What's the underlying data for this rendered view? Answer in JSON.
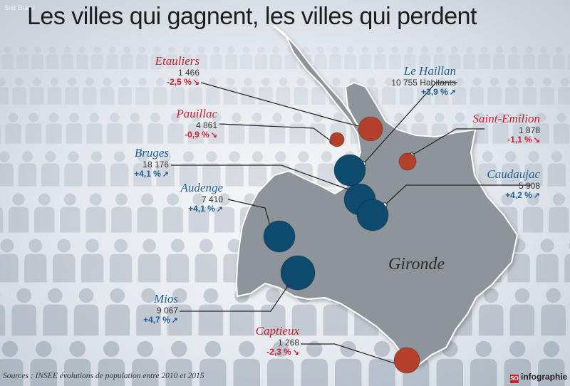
{
  "title": "Les villes qui gagnent, les villes qui perdent",
  "watermark": "Sud Ouest",
  "region_label": "Gironde",
  "source": "Sources : INSEE évolutions de population entre 2010 et 2015",
  "brand": "infographie",
  "brand_mark": "SO",
  "colors": {
    "gain": "#0e4a6e",
    "loss": "#b3402b",
    "map_fill": "#8e959a",
    "map_stroke": "#ffffff"
  },
  "cities": [
    {
      "id": "etauliers",
      "name": "Etauliers",
      "population": "1 466",
      "change": "-2,5 %",
      "trend": "loss",
      "arrow": "↘"
    },
    {
      "id": "pauillac",
      "name": "Pauillac",
      "population": "4 861",
      "change": "-0,9 %",
      "trend": "loss",
      "arrow": "↘"
    },
    {
      "id": "bruges",
      "name": "Bruges",
      "population": "18 176",
      "change": "+4,1 %",
      "trend": "gain",
      "arrow": "↗"
    },
    {
      "id": "audenge",
      "name": "Audenge",
      "population": "7 410",
      "change": "+4,1 %",
      "trend": "gain",
      "arrow": "↗"
    },
    {
      "id": "mios",
      "name": "Mios",
      "population": "9 067",
      "change": "+4,7 %",
      "trend": "gain",
      "arrow": "↗"
    },
    {
      "id": "captieux",
      "name": "Captieux",
      "population": "1 268",
      "change": "-2,3 %",
      "trend": "loss",
      "arrow": "↘"
    },
    {
      "id": "le-haillan",
      "name": "Le Haillan",
      "population": "10 755 Habitants",
      "change": "+3,9 %",
      "trend": "gain",
      "arrow": "↗"
    },
    {
      "id": "saint-emilion",
      "name": "Saint-Emilion",
      "population": "1 878",
      "change": "-1,1 %",
      "trend": "loss",
      "arrow": "↘"
    },
    {
      "id": "caudaujac",
      "name": "Caudaujac",
      "population": "5 908",
      "change": "+4,2 %",
      "trend": "gain",
      "arrow": "↗"
    }
  ]
}
